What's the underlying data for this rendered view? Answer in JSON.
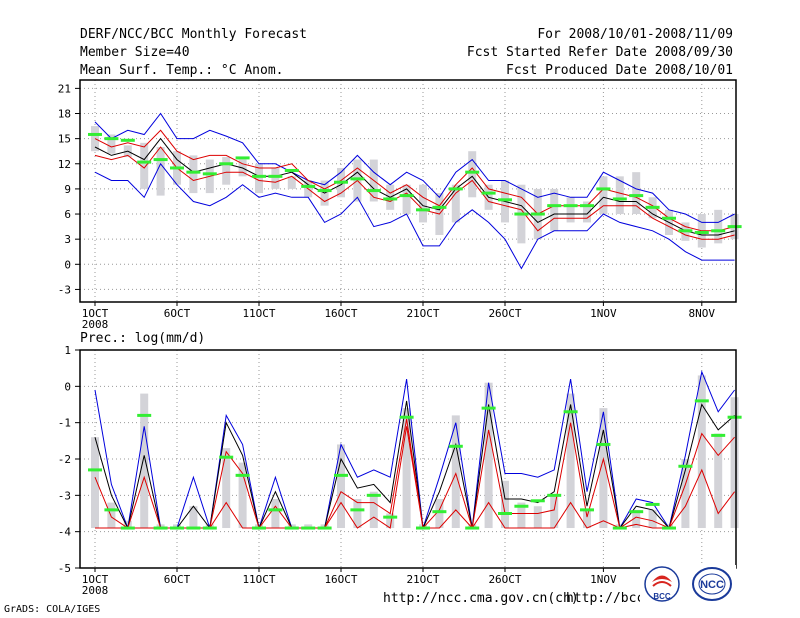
{
  "header": {
    "title": "DERF/NCC/BCC Monthly Forecast",
    "member_size": "Member Size=40",
    "variable": "Mean Surf. Temp.: °C Anom.",
    "period": "For 2008/10/01-2008/11/09",
    "started": "Fcst Started Refer Date 2008/09/30",
    "produced": "Fcst Produced Date 2008/10/01"
  },
  "footer": {
    "grads": "GrADS: COLA/IGES",
    "url1": "http://ncc.cma.gov.cn(ch)",
    "url2": "http://bcc.",
    "logo_bcc": "BCC",
    "logo_ncc": "NCC"
  },
  "colors": {
    "upper": "#0000dd",
    "mean": "#000000",
    "spread": "#dd0000",
    "bar": "#d3d3d8",
    "marker": "#33ee33"
  },
  "chart_data": [
    {
      "type": "line",
      "title": "Mean Surf. Temp.: °C Anom.",
      "xlabel": "",
      "ylabel": "",
      "ylim": [
        -4.5,
        22
      ],
      "yticks": [
        -3,
        0,
        3,
        6,
        9,
        12,
        15,
        18,
        21
      ],
      "ytick_labels": [
        "-3",
        "0",
        "3",
        "6",
        "9",
        "12",
        "15",
        "18",
        "21"
      ],
      "xticks": [
        1,
        6,
        11,
        16,
        21,
        26,
        32,
        38
      ],
      "xtick_labels": [
        "1OCT",
        "6OCT",
        "11OCT",
        "16OCT",
        "21OCT",
        "26OCT",
        "1NOV",
        "8NOV"
      ],
      "year_label": "2008",
      "x": [
        1,
        2,
        3,
        4,
        5,
        6,
        7,
        8,
        9,
        10,
        11,
        12,
        13,
        14,
        15,
        16,
        17,
        18,
        19,
        20,
        21,
        22,
        23,
        24,
        25,
        26,
        27,
        28,
        29,
        30,
        31,
        32,
        33,
        34,
        35,
        36,
        37,
        38,
        39,
        40
      ],
      "series": [
        {
          "name": "max",
          "color": "#0000dd",
          "values": [
            17,
            15,
            16,
            15.5,
            18,
            15,
            15,
            16,
            15.3,
            14.5,
            12,
            12,
            11,
            10,
            9.5,
            11,
            13,
            11,
            9.5,
            11,
            10,
            8,
            11,
            12.5,
            10,
            10,
            9,
            8,
            8.5,
            8,
            8,
            11,
            10,
            9,
            8.5,
            6.5,
            6,
            5,
            5,
            6
          ]
        },
        {
          "name": "upper",
          "color": "#dd0000",
          "values": [
            15,
            14,
            14.5,
            14,
            16,
            13.5,
            12.5,
            13,
            13,
            12,
            11.5,
            11.5,
            12,
            10,
            9,
            10,
            11.5,
            10,
            8.5,
            9.5,
            8,
            7,
            9.5,
            11.5,
            9,
            8.5,
            8,
            6,
            7,
            7,
            7,
            9,
            8.5,
            8,
            7,
            5.5,
            4.5,
            4,
            4,
            4.5
          ]
        },
        {
          "name": "mean",
          "color": "#000000",
          "values": [
            14,
            13,
            13.5,
            12.5,
            15,
            12.5,
            11,
            11.5,
            12,
            11.5,
            10.5,
            10.5,
            11,
            9.5,
            8.5,
            9.5,
            11,
            9,
            8,
            9,
            7,
            6.5,
            9,
            10.5,
            8,
            7.5,
            7,
            5,
            6,
            6,
            6,
            8,
            7.5,
            7.5,
            6,
            5,
            4,
            3.5,
            3.5,
            4
          ]
        },
        {
          "name": "lower",
          "color": "#dd0000",
          "values": [
            13,
            12.5,
            13,
            11.5,
            14,
            11.5,
            10,
            10.5,
            11,
            11,
            10,
            9.8,
            10.5,
            9,
            7.5,
            8.5,
            10,
            8,
            7.5,
            8.5,
            6.5,
            6,
            8.5,
            10,
            7.5,
            7,
            6.5,
            4,
            5.5,
            5.5,
            5.5,
            7,
            7,
            7,
            5.5,
            4.5,
            3.5,
            3,
            3,
            3.5
          ]
        },
        {
          "name": "min",
          "color": "#0000dd",
          "values": [
            11,
            10,
            10,
            8,
            12,
            9.5,
            7.5,
            7,
            8,
            9.5,
            8,
            8.5,
            8,
            8,
            5,
            6,
            8,
            4.5,
            5,
            6,
            2.2,
            2.2,
            5,
            6.5,
            5,
            3,
            -0.5,
            3,
            4,
            4,
            4,
            6,
            5,
            4.5,
            4,
            3,
            1.5,
            0.5,
            0.5,
            0.5
          ]
        }
      ],
      "bars": [
        [
          16.5,
          13.5
        ],
        [
          15.5,
          13.2
        ],
        [
          14.2,
          12.8
        ],
        [
          14.5,
          9
        ],
        [
          14,
          8.2
        ],
        [
          13.5,
          9.5
        ],
        [
          13,
          8.5
        ],
        [
          12.5,
          8.5
        ],
        [
          12.8,
          9.5
        ],
        [
          12.5,
          10.5
        ],
        [
          12,
          8.5
        ],
        [
          11.5,
          9
        ],
        [
          10.5,
          9
        ],
        [
          10,
          8
        ],
        [
          10,
          7
        ],
        [
          11.5,
          8
        ],
        [
          12.5,
          7.5
        ],
        [
          12.5,
          7.5
        ],
        [
          9.5,
          6.5
        ],
        [
          9.5,
          6
        ],
        [
          9.5,
          5
        ],
        [
          8.5,
          3.5
        ],
        [
          9.5,
          5
        ],
        [
          13.5,
          8
        ],
        [
          9.5,
          6.5
        ],
        [
          10,
          5
        ],
        [
          9.5,
          2.5
        ],
        [
          9,
          3
        ],
        [
          9,
          4
        ],
        [
          8,
          5
        ],
        [
          7.5,
          5
        ],
        [
          10.5,
          6
        ],
        [
          10.5,
          6
        ],
        [
          11,
          6
        ],
        [
          8,
          5.5
        ],
        [
          6.5,
          3.5
        ],
        [
          5,
          2.8
        ],
        [
          6,
          2
        ],
        [
          6.5,
          2.5
        ],
        [
          6,
          3
        ]
      ],
      "markers": [
        15.5,
        15,
        14.8,
        12.2,
        12.5,
        11.5,
        11,
        10.8,
        12,
        12.7,
        10.5,
        10.5,
        11.2,
        9.3,
        8.8,
        9.8,
        10.2,
        8.8,
        7.8,
        8.2,
        6.5,
        6.8,
        9,
        11,
        8.5,
        7.7,
        6,
        6,
        7,
        7,
        7,
        9,
        7.8,
        8.2,
        6.8,
        5.5,
        4,
        3.8,
        4,
        4.5
      ]
    },
    {
      "type": "line",
      "title": "Prec.: log(mm/d)",
      "xlabel": "",
      "ylabel": "",
      "ylim": [
        -5,
        1
      ],
      "yticks": [
        -5,
        -4,
        -3,
        -2,
        -1,
        0,
        1
      ],
      "ytick_labels": [
        "-5",
        "-4",
        "-3",
        "-2",
        "-1",
        "0",
        "1"
      ],
      "xticks": [
        1,
        6,
        11,
        16,
        21,
        26,
        32,
        38
      ],
      "xtick_labels": [
        "1OCT",
        "6OCT",
        "11OCT",
        "16OCT",
        "21OCT",
        "26OCT",
        "1NOV",
        "8NOV"
      ],
      "year_label": "2008",
      "x": [
        1,
        2,
        3,
        4,
        5,
        6,
        7,
        8,
        9,
        10,
        11,
        12,
        13,
        14,
        15,
        16,
        17,
        18,
        19,
        20,
        21,
        22,
        23,
        24,
        25,
        26,
        27,
        28,
        29,
        30,
        31,
        32,
        33,
        34,
        35,
        36,
        37,
        38,
        39,
        40
      ],
      "series": [
        {
          "name": "upper",
          "color": "#0000dd",
          "values": [
            -0.1,
            -2.7,
            -3.9,
            -1.1,
            -3.9,
            -3.9,
            -2.5,
            -3.9,
            -0.8,
            -1.6,
            -3.9,
            -2.5,
            -3.9,
            -3.9,
            -3.9,
            -1.6,
            -2.5,
            -2.3,
            -2.5,
            0.2,
            -3.9,
            -2.5,
            -1,
            -3.9,
            0.1,
            -2.4,
            -2.4,
            -2.5,
            -2.3,
            0.2,
            -2.9,
            -0.7,
            -3.9,
            -3.1,
            -3.2,
            -3.9,
            -1.9,
            0.4,
            -0.7,
            -0.1
          ]
        },
        {
          "name": "mean",
          "color": "#000000",
          "values": [
            -1.4,
            -3,
            -3.9,
            -1.9,
            -3.9,
            -3.9,
            -3.3,
            -3.9,
            -1,
            -1.9,
            -3.9,
            -2.9,
            -3.9,
            -3.9,
            -3.9,
            -2,
            -2.8,
            -2.7,
            -3.2,
            -0.4,
            -3.9,
            -2.9,
            -1.6,
            -3.9,
            -0.5,
            -3.1,
            -3.1,
            -3.2,
            -2.9,
            -0.5,
            -3.3,
            -1.2,
            -3.9,
            -3.3,
            -3.4,
            -3.9,
            -2.3,
            -0.5,
            -1.2,
            -0.8
          ]
        },
        {
          "name": "upper2",
          "color": "#dd0000",
          "values": [
            -2.5,
            -3.6,
            -3.9,
            -2.5,
            -3.9,
            -3.9,
            -3.9,
            -3.9,
            -1.8,
            -2.4,
            -3.9,
            -3.3,
            -3.9,
            -3.9,
            -3.9,
            -2.9,
            -3.2,
            -3.2,
            -3.5,
            -0.9,
            -3.9,
            -3.4,
            -2.4,
            -3.9,
            -1.2,
            -3.5,
            -3.5,
            -3.5,
            -3.4,
            -1,
            -3.6,
            -2,
            -3.9,
            -3.6,
            -3.7,
            -3.9,
            -2.7,
            -1.3,
            -1.9,
            -1.4
          ]
        },
        {
          "name": "lower",
          "color": "#dd0000",
          "values": [
            -3.9,
            -3.9,
            -3.9,
            -3.9,
            -3.9,
            -3.9,
            -3.9,
            -3.9,
            -3.2,
            -3.9,
            -3.9,
            -3.9,
            -3.9,
            -3.9,
            -3.9,
            -3.2,
            -3.9,
            -3.6,
            -3.9,
            -1.1,
            -3.9,
            -3.9,
            -3.4,
            -3.9,
            -3.2,
            -3.9,
            -3.9,
            -3.9,
            -3.9,
            -3.2,
            -3.9,
            -3.7,
            -3.9,
            -3.8,
            -3.9,
            -3.9,
            -3.3,
            -2.3,
            -3.5,
            -2.9
          ]
        }
      ],
      "bars": [
        [
          -1.4,
          -3.9
        ],
        [
          -3.2,
          -3.9
        ],
        [
          -3.7,
          -3.9
        ],
        [
          -0.2,
          -3.9
        ],
        [
          -3.8,
          -3.9
        ],
        [
          -3.8,
          -3.9
        ],
        [
          -3.3,
          -3.9
        ],
        [
          -3.8,
          -3.9
        ],
        [
          -1.7,
          -3.9
        ],
        [
          -2.1,
          -3.9
        ],
        [
          -3.8,
          -3.9
        ],
        [
          -3.1,
          -3.9
        ],
        [
          -3.8,
          -3.9
        ],
        [
          -3.8,
          -3.9
        ],
        [
          -3.8,
          -3.9
        ],
        [
          -1.6,
          -3.9
        ],
        [
          -3.1,
          -3.9
        ],
        [
          -2.9,
          -3.9
        ],
        [
          -3.5,
          -3.9
        ],
        [
          -0.6,
          -3.9
        ],
        [
          -3.8,
          -3.9
        ],
        [
          -3.1,
          -3.9
        ],
        [
          -0.8,
          -3.9
        ],
        [
          -3.8,
          -3.9
        ],
        [
          0.1,
          -3.9
        ],
        [
          -2.6,
          -3.9
        ],
        [
          -3.2,
          -3.9
        ],
        [
          -3.3,
          -3.9
        ],
        [
          -3,
          -3.9
        ],
        [
          -0.2,
          -3.9
        ],
        [
          -3.4,
          -3.9
        ],
        [
          -0.6,
          -3.9
        ],
        [
          -3.8,
          -3.9
        ],
        [
          -3.4,
          -3.9
        ],
        [
          -3.4,
          -3.9
        ],
        [
          -3.8,
          -3.9
        ],
        [
          -2,
          -3.9
        ],
        [
          0.3,
          -3.9
        ],
        [
          -1.3,
          -3.9
        ],
        [
          -0.3,
          -3.9
        ]
      ],
      "markers": [
        -2.3,
        -3.4,
        -3.9,
        -0.8,
        -3.9,
        -3.9,
        -3.9,
        -3.9,
        -1.95,
        -2.45,
        -3.9,
        -3.4,
        -3.9,
        -3.9,
        -3.9,
        -2.45,
        -3.4,
        -3,
        -3.6,
        -0.85,
        -3.9,
        -3.45,
        -1.65,
        -3.9,
        -0.6,
        -3.5,
        -3.3,
        -3.15,
        -3,
        -0.7,
        -3.4,
        -1.6,
        -3.9,
        -3.45,
        -3.25,
        -3.9,
        -2.2,
        -0.4,
        -1.35,
        -0.85
      ]
    }
  ]
}
